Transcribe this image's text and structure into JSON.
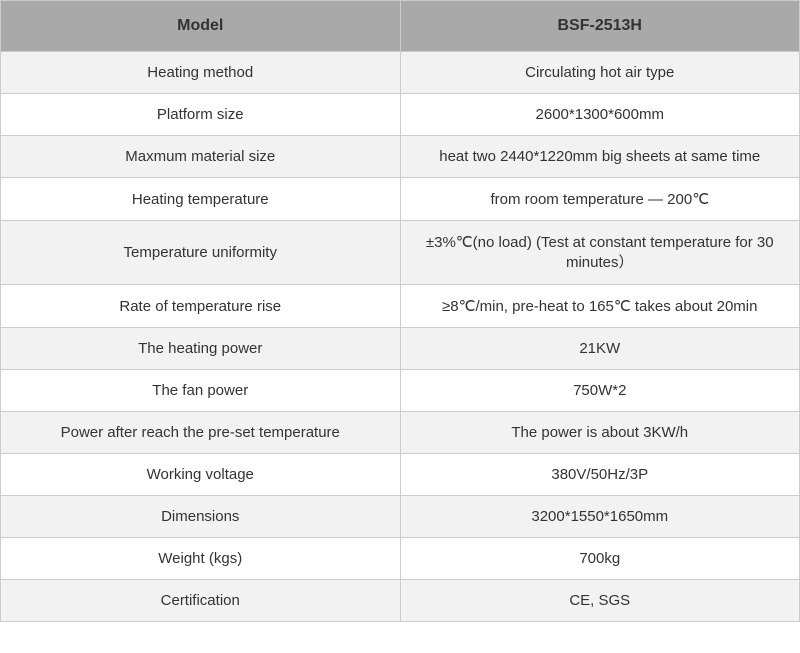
{
  "table": {
    "type": "table",
    "columns": [
      "Model",
      "BSF-2513H"
    ],
    "column_widths": [
      "50%",
      "50%"
    ],
    "header_bg": "#a9a9a9",
    "header_color": "#333333",
    "header_fontsize": 16,
    "header_fontweight": "bold",
    "row_even_bg": "#f2f2f2",
    "row_odd_bg": "#ffffff",
    "cell_color": "#333333",
    "cell_fontsize": 15,
    "border_color": "#cccccc",
    "rows": [
      {
        "label": "Heating method",
        "value": "Circulating hot air type"
      },
      {
        "label": "Platform size",
        "value": "2600*1300*600mm"
      },
      {
        "label": "Maxmum material size",
        "value": "heat two 2440*1220mm big sheets at same time"
      },
      {
        "label": "Heating temperature",
        "value": "from room temperature — 200℃"
      },
      {
        "label": "Temperature uniformity",
        "value": "±3%℃(no load) (Test at constant temperature for 30 minutes）"
      },
      {
        "label": "Rate of temperature rise",
        "value": "≥8℃/min, pre-heat to 165℃ takes about 20min"
      },
      {
        "label": "The heating power",
        "value": "21KW"
      },
      {
        "label": "The fan power",
        "value": "750W*2"
      },
      {
        "label": "Power after reach the pre-set temperature",
        "value": "The power is about 3KW/h"
      },
      {
        "label": "Working voltage",
        "value": "380V/50Hz/3P"
      },
      {
        "label": "Dimensions",
        "value": "3200*1550*1650mm"
      },
      {
        "label": "Weight (kgs)",
        "value": "700kg"
      },
      {
        "label": "Certification",
        "value": "CE, SGS"
      }
    ]
  }
}
